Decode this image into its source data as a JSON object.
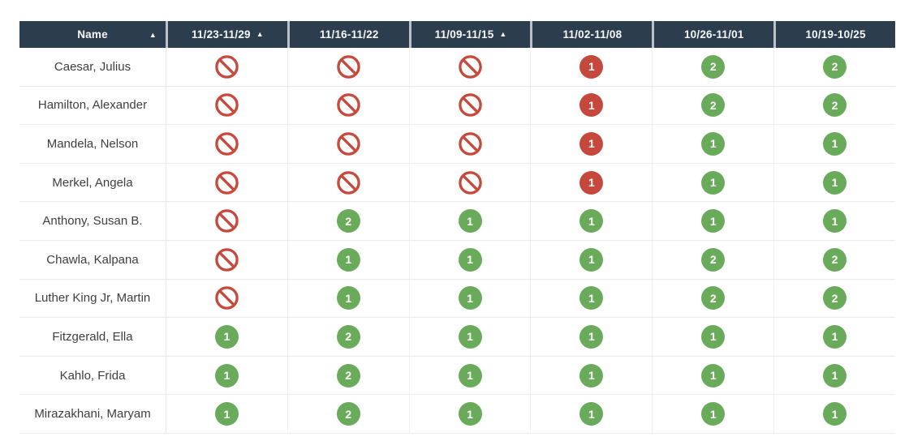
{
  "table": {
    "header": {
      "sort_icon": "▲",
      "columns": [
        {
          "id": "name",
          "label": "Name",
          "sorted": true
        },
        {
          "id": "wk-1123-1129",
          "label": "11/23-11/29",
          "sorted": true
        },
        {
          "id": "wk-1116-1122",
          "label": "11/16-11/22",
          "sorted": false
        },
        {
          "id": "wk-1109-1115",
          "label": "11/09-11/15",
          "sorted": true
        },
        {
          "id": "wk-1102-1108",
          "label": "11/02-11/08",
          "sorted": false
        },
        {
          "id": "wk-1026-1101",
          "label": "10/26-11/01",
          "sorted": false
        },
        {
          "id": "wk-1019-1025",
          "label": "10/19-10/25",
          "sorted": false
        }
      ]
    },
    "rows": [
      {
        "name": "Caesar, Julius",
        "cells": [
          {
            "type": "blocked"
          },
          {
            "type": "blocked"
          },
          {
            "type": "blocked"
          },
          {
            "type": "badge",
            "color": "red",
            "value": "1"
          },
          {
            "type": "badge",
            "color": "green",
            "value": "2"
          },
          {
            "type": "badge",
            "color": "green",
            "value": "2"
          }
        ]
      },
      {
        "name": "Hamilton, Alexander",
        "cells": [
          {
            "type": "blocked"
          },
          {
            "type": "blocked"
          },
          {
            "type": "blocked"
          },
          {
            "type": "badge",
            "color": "red",
            "value": "1"
          },
          {
            "type": "badge",
            "color": "green",
            "value": "2"
          },
          {
            "type": "badge",
            "color": "green",
            "value": "2"
          }
        ]
      },
      {
        "name": "Mandela, Nelson",
        "cells": [
          {
            "type": "blocked"
          },
          {
            "type": "blocked"
          },
          {
            "type": "blocked"
          },
          {
            "type": "badge",
            "color": "red",
            "value": "1"
          },
          {
            "type": "badge",
            "color": "green",
            "value": "1"
          },
          {
            "type": "badge",
            "color": "green",
            "value": "1"
          }
        ]
      },
      {
        "name": "Merkel, Angela",
        "cells": [
          {
            "type": "blocked"
          },
          {
            "type": "blocked"
          },
          {
            "type": "blocked"
          },
          {
            "type": "badge",
            "color": "red",
            "value": "1"
          },
          {
            "type": "badge",
            "color": "green",
            "value": "1"
          },
          {
            "type": "badge",
            "color": "green",
            "value": "1"
          }
        ]
      },
      {
        "name": "Anthony, Susan B.",
        "cells": [
          {
            "type": "blocked"
          },
          {
            "type": "badge",
            "color": "green",
            "value": "2"
          },
          {
            "type": "badge",
            "color": "green",
            "value": "1"
          },
          {
            "type": "badge",
            "color": "green",
            "value": "1"
          },
          {
            "type": "badge",
            "color": "green",
            "value": "1"
          },
          {
            "type": "badge",
            "color": "green",
            "value": "1"
          }
        ]
      },
      {
        "name": "Chawla, Kalpana",
        "cells": [
          {
            "type": "blocked"
          },
          {
            "type": "badge",
            "color": "green",
            "value": "1"
          },
          {
            "type": "badge",
            "color": "green",
            "value": "1"
          },
          {
            "type": "badge",
            "color": "green",
            "value": "1"
          },
          {
            "type": "badge",
            "color": "green",
            "value": "2"
          },
          {
            "type": "badge",
            "color": "green",
            "value": "2"
          }
        ]
      },
      {
        "name": "Luther King Jr, Martin",
        "cells": [
          {
            "type": "blocked"
          },
          {
            "type": "badge",
            "color": "green",
            "value": "1"
          },
          {
            "type": "badge",
            "color": "green",
            "value": "1"
          },
          {
            "type": "badge",
            "color": "green",
            "value": "1"
          },
          {
            "type": "badge",
            "color": "green",
            "value": "2"
          },
          {
            "type": "badge",
            "color": "green",
            "value": "2"
          }
        ]
      },
      {
        "name": "Fitzgerald, Ella",
        "cells": [
          {
            "type": "badge",
            "color": "green",
            "value": "1"
          },
          {
            "type": "badge",
            "color": "green",
            "value": "2"
          },
          {
            "type": "badge",
            "color": "green",
            "value": "1"
          },
          {
            "type": "badge",
            "color": "green",
            "value": "1"
          },
          {
            "type": "badge",
            "color": "green",
            "value": "1"
          },
          {
            "type": "badge",
            "color": "green",
            "value": "1"
          }
        ]
      },
      {
        "name": "Kahlo, Frida",
        "cells": [
          {
            "type": "badge",
            "color": "green",
            "value": "1"
          },
          {
            "type": "badge",
            "color": "green",
            "value": "2"
          },
          {
            "type": "badge",
            "color": "green",
            "value": "1"
          },
          {
            "type": "badge",
            "color": "green",
            "value": "1"
          },
          {
            "type": "badge",
            "color": "green",
            "value": "1"
          },
          {
            "type": "badge",
            "color": "green",
            "value": "1"
          }
        ]
      },
      {
        "name": "Mirazakhani, Maryam",
        "cells": [
          {
            "type": "badge",
            "color": "green",
            "value": "1"
          },
          {
            "type": "badge",
            "color": "green",
            "value": "2"
          },
          {
            "type": "badge",
            "color": "green",
            "value": "1"
          },
          {
            "type": "badge",
            "color": "green",
            "value": "1"
          },
          {
            "type": "badge",
            "color": "green",
            "value": "1"
          },
          {
            "type": "badge",
            "color": "green",
            "value": "1"
          }
        ]
      }
    ]
  },
  "colors": {
    "background": "#ffffff",
    "header_bg": "#2c3d4e",
    "header_text": "#f5f7f8",
    "header_divider": "#b9c0c6",
    "badge_red": "#c5483c",
    "badge_green": "#69ab5b",
    "blocked_red": "#c6493b",
    "name_text": "#3e3e3e",
    "row_divider": "#e9e9e9",
    "column_divider": "#f0f0f0"
  }
}
